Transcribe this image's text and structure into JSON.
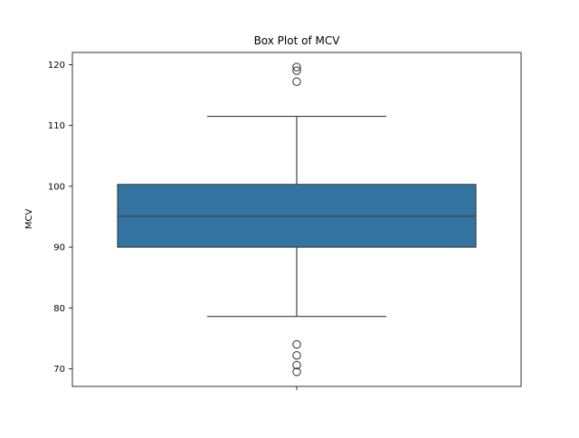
{
  "chart_data": {
    "type": "box",
    "title": "Box Plot of MCV",
    "xlabel": "",
    "ylabel": "MCV",
    "ylim": [
      67.1,
      122.0
    ],
    "yticks": [
      70,
      80,
      90,
      100,
      110,
      120
    ],
    "grid": false,
    "box": {
      "whisker_low": 78.6,
      "q1": 90.0,
      "median": 95.1,
      "q3": 100.3,
      "whisker_high": 111.5,
      "fill": "#3274a1",
      "outliers": [
        119.6,
        119.0,
        117.2,
        74.0,
        72.2,
        70.6,
        69.5
      ]
    }
  }
}
